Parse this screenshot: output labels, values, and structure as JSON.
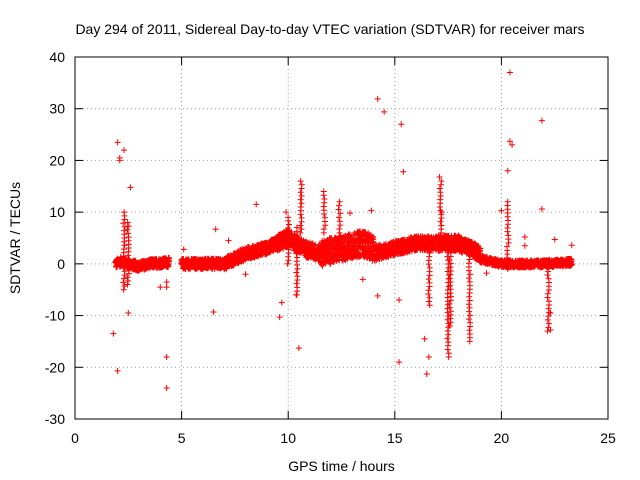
{
  "chart_data": {
    "type": "scatter",
    "title": "Day 294 of 2011, Sidereal Day-to-day VTEC variation (SDTVAR) for receiver mars",
    "xlabel": "GPS time / hours",
    "ylabel": "SDTVAR / TECUs",
    "xlim": [
      0,
      25
    ],
    "ylim": [
      -30,
      40
    ],
    "xticks": [
      0,
      5,
      10,
      15,
      20,
      25
    ],
    "yticks": [
      -30,
      -20,
      -10,
      0,
      10,
      20,
      30,
      40
    ],
    "grid": true,
    "marker": "+",
    "color": "#ff0000",
    "band_segments": [
      {
        "x0": 1.9,
        "x1": 4.4,
        "center": [
          [
            1.9,
            0
          ],
          [
            2.2,
            0.5
          ],
          [
            2.5,
            0
          ],
          [
            3.0,
            -0.5
          ],
          [
            3.5,
            0
          ],
          [
            4.4,
            0.3
          ]
        ],
        "half_width": 0.9
      },
      {
        "x0": 5.0,
        "x1": 7.0,
        "center": [
          [
            5.0,
            0
          ],
          [
            6.0,
            0
          ],
          [
            7.0,
            0
          ]
        ],
        "half_width": 1.0
      },
      {
        "x0": 7.0,
        "x1": 9.5,
        "center": [
          [
            7.0,
            0
          ],
          [
            8.0,
            2
          ],
          [
            9.0,
            3
          ],
          [
            9.5,
            4
          ]
        ],
        "half_width": 1.2
      },
      {
        "x0": 9.5,
        "x1": 11.5,
        "center": [
          [
            9.5,
            4
          ],
          [
            10.0,
            5
          ],
          [
            10.7,
            3
          ],
          [
            11.5,
            2
          ]
        ],
        "half_width": 1.6
      },
      {
        "x0": 11.5,
        "x1": 14.0,
        "center": [
          [
            11.5,
            2
          ],
          [
            12.5,
            3
          ],
          [
            13.5,
            4
          ],
          [
            14.0,
            3
          ]
        ],
        "half_width": 2.5
      },
      {
        "x0": 14.0,
        "x1": 17.0,
        "center": [
          [
            14.0,
            2
          ],
          [
            15.0,
            3
          ],
          [
            16.0,
            4
          ],
          [
            17.0,
            4
          ]
        ],
        "half_width": 1.4
      },
      {
        "x0": 17.0,
        "x1": 19.0,
        "center": [
          [
            17.0,
            4
          ],
          [
            18.0,
            4
          ],
          [
            19.0,
            2
          ]
        ],
        "half_width": 1.5
      },
      {
        "x0": 19.0,
        "x1": 23.3,
        "center": [
          [
            19.0,
            1
          ],
          [
            20.0,
            0
          ],
          [
            21.0,
            0
          ],
          [
            22.0,
            0
          ],
          [
            23.3,
            0.3
          ]
        ],
        "half_width": 0.7
      }
    ],
    "spikes": [
      {
        "x": 2.3,
        "y_from": -5,
        "y_to": 10
      },
      {
        "x": 2.5,
        "y_from": -4,
        "y_to": 8
      },
      {
        "x": 10.0,
        "y_from": 0,
        "y_to": 9
      },
      {
        "x": 10.4,
        "y_from": -6,
        "y_to": 7
      },
      {
        "x": 10.6,
        "y_from": 6,
        "y_to": 16
      },
      {
        "x": 11.7,
        "y_from": 6,
        "y_to": 14
      },
      {
        "x": 12.4,
        "y_from": 6,
        "y_to": 12
      },
      {
        "x": 16.6,
        "y_from": -8,
        "y_to": 5
      },
      {
        "x": 17.5,
        "y_from": -18,
        "y_to": 5
      },
      {
        "x": 17.6,
        "y_from": -12,
        "y_to": 5
      },
      {
        "x": 17.15,
        "y_from": 6,
        "y_to": 16
      },
      {
        "x": 18.5,
        "y_from": -15,
        "y_to": 3
      },
      {
        "x": 20.3,
        "y_from": -1,
        "y_to": 12
      },
      {
        "x": 22.2,
        "y_from": -13,
        "y_to": 0
      }
    ],
    "outliers": [
      [
        1.8,
        -13.5
      ],
      [
        2.0,
        -20.7
      ],
      [
        2.0,
        23.5
      ],
      [
        2.1,
        20.0
      ],
      [
        2.1,
        20.5
      ],
      [
        2.3,
        22.0
      ],
      [
        2.5,
        -9.5
      ],
      [
        2.6,
        14.8
      ],
      [
        4.3,
        -18.0
      ],
      [
        4.3,
        -24.0
      ],
      [
        4.3,
        -4.5
      ],
      [
        4.3,
        -3.5
      ],
      [
        4.0,
        -4.5
      ],
      [
        6.5,
        -9.3
      ],
      [
        8.5,
        11.5
      ],
      [
        9.6,
        -10.3
      ],
      [
        9.7,
        -7.5
      ],
      [
        9.9,
        10.0
      ],
      [
        10.5,
        -16.3
      ],
      [
        10.4,
        -6.0
      ],
      [
        13.5,
        -3.0
      ],
      [
        14.2,
        31.9
      ],
      [
        14.5,
        29.4
      ],
      [
        14.2,
        -6.2
      ],
      [
        15.3,
        27.0
      ],
      [
        15.4,
        17.8
      ],
      [
        15.2,
        -19.0
      ],
      [
        15.2,
        -7.0
      ],
      [
        16.4,
        -14.5
      ],
      [
        16.5,
        -21.3
      ],
      [
        16.6,
        -18.0
      ],
      [
        17.1,
        16.8
      ],
      [
        17.2,
        10.0
      ],
      [
        20.4,
        37.0
      ],
      [
        20.4,
        23.7
      ],
      [
        20.5,
        23.0
      ],
      [
        20.3,
        18.0
      ],
      [
        20.0,
        10.3
      ],
      [
        21.1,
        5.2
      ],
      [
        21.1,
        3.5
      ],
      [
        21.9,
        27.7
      ],
      [
        21.9,
        10.6
      ],
      [
        22.3,
        -9.5
      ],
      [
        22.3,
        -12.8
      ],
      [
        22.5,
        4.7
      ],
      [
        23.3,
        3.6
      ],
      [
        5.1,
        2.8
      ],
      [
        6.6,
        6.7
      ],
      [
        7.2,
        4.5
      ],
      [
        8.0,
        -2.0
      ],
      [
        12.9,
        9.8
      ],
      [
        13.9,
        10.3
      ],
      [
        19.3,
        -1.8
      ]
    ]
  }
}
